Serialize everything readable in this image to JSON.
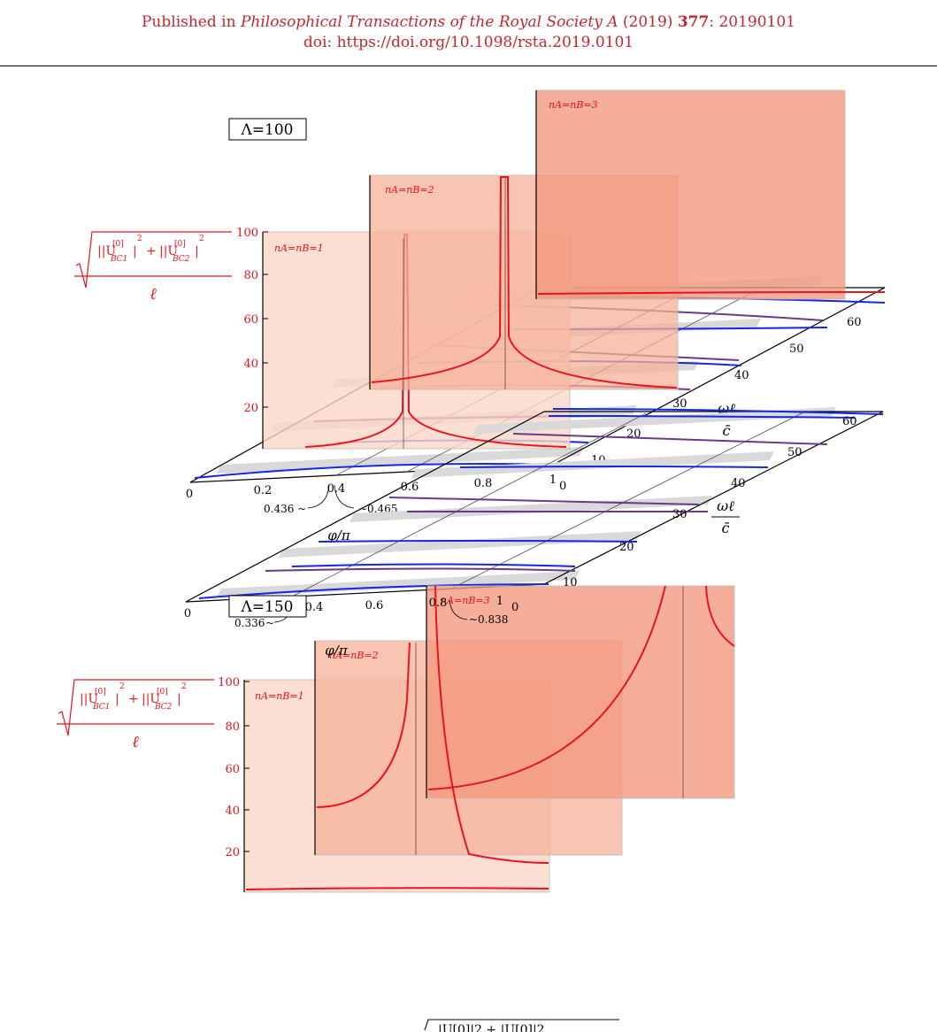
{
  "header": {
    "line1_prefix": "Published in ",
    "journal": "Philosophical Transactions of the Royal Society A",
    "year": "(2019)",
    "volume": "377",
    "article": ": 20190101",
    "doi": "doi: https://doi.org/10.1098/rsta.2019.0101"
  },
  "colors": {
    "header_text": "#c0282f",
    "panel_1": "#fbd6c7",
    "panel_2": "#f7b29a",
    "panel_3": "#f29a80",
    "curve_red": "#e8141c",
    "curve_purple": "#6a3a8a",
    "curve_blue": "#1428e0",
    "band_gray": "#d9d9d9",
    "axis_label_red": "#e8141c"
  },
  "plot_common": {
    "z_label_sqrt": "|U",
    "z_label_sup": "[0]",
    "z_label_sub1": "BC1",
    "z_label_sub2": "BC2",
    "z_label_plus": "+",
    "z_label_denominator": "ℓ",
    "y_label_numerator": "ωℓ",
    "y_label_denominator": "c̄",
    "x_label": "φ/π",
    "x_ticks": [
      "0",
      "0.2",
      "0.4",
      "0.6",
      "0.8",
      "1"
    ],
    "y_ticks": [
      "0",
      "10",
      "20",
      "30",
      "40",
      "50",
      "60"
    ],
    "z_ticks": [
      "20",
      "40",
      "60",
      "80",
      "100"
    ]
  },
  "chart_data": [
    {
      "type": "line",
      "title": "Λ=100",
      "panels": [
        "nA=nB=1",
        "nA=nB=2",
        "nA=nB=3"
      ],
      "annotations": [
        "0.436",
        "0.465"
      ],
      "xlim": [
        0,
        1
      ],
      "ylim": [
        0,
        60
      ],
      "zlim": [
        0,
        100
      ]
    },
    {
      "type": "line",
      "title": "Λ=150",
      "panels": [
        "nA=nB=1",
        "nA=nB=2",
        "nA=nB=3"
      ],
      "annotations": [
        "0.336",
        "0.838"
      ],
      "xlim": [
        0,
        1
      ],
      "ylim": [
        0,
        60
      ],
      "zlim": [
        0,
        100
      ]
    }
  ],
  "footer_fragment": {
    "text": "|U[0]|2 + |U[0]|2"
  }
}
